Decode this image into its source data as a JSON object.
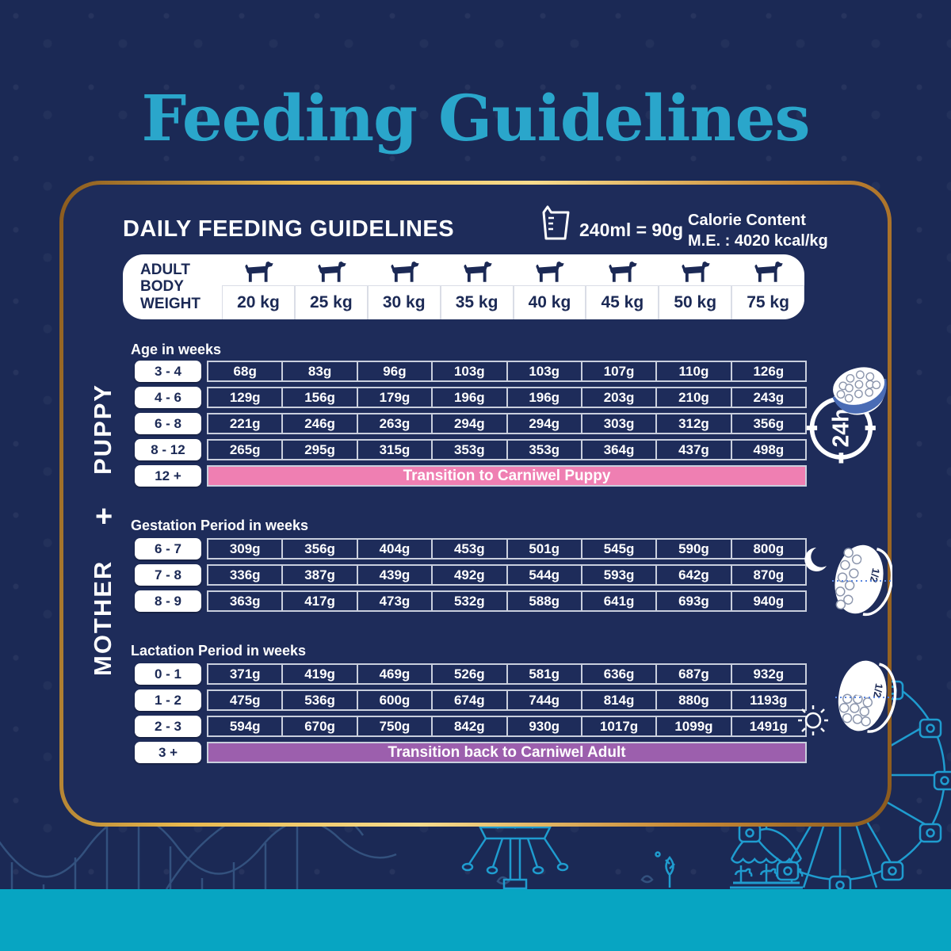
{
  "title": "Feeding Guidelines",
  "colors": {
    "navy": "#1b2955",
    "teal": "#2aa6cb",
    "gold": "#e8b34b",
    "pink": "#ef7fb2",
    "purple": "#9c5fad",
    "strip": "#07a5c2",
    "bowl_blue": "#4a6cb5",
    "lineart": "#1f9ccf"
  },
  "panel": {
    "heading": "DAILY FEEDING GUIDELINES",
    "cup_note": "240ml = 90g",
    "calorie_line1": "Calorie Content",
    "calorie_line2": "M.E. : 4020 kcal/kg",
    "weight_header": {
      "label": "ADULT BODY WEIGHT",
      "weights": [
        "20 kg",
        "25 kg",
        "30 kg",
        "35 kg",
        "40 kg",
        "45 kg",
        "50 kg",
        "75 kg"
      ]
    },
    "sections": {
      "puppy": {
        "side_label": "PUPPY",
        "age_label": "Age in weeks",
        "icon_label": "24h",
        "rows": [
          {
            "label": "3 - 4",
            "values": [
              "68g",
              "83g",
              "96g",
              "103g",
              "103g",
              "107g",
              "110g",
              "126g"
            ]
          },
          {
            "label": "4 - 6",
            "values": [
              "129g",
              "156g",
              "179g",
              "196g",
              "196g",
              "203g",
              "210g",
              "243g"
            ]
          },
          {
            "label": "6 - 8",
            "values": [
              "221g",
              "246g",
              "263g",
              "294g",
              "294g",
              "303g",
              "312g",
              "356g"
            ]
          },
          {
            "label": "8 - 12",
            "values": [
              "265g",
              "295g",
              "315g",
              "353g",
              "353g",
              "364g",
              "437g",
              "498g"
            ]
          }
        ],
        "banner": {
          "label": "12 +",
          "text": "Transition to Carniwel Puppy"
        }
      },
      "mother": {
        "plus": "+",
        "side_label": "MOTHER",
        "gestation": {
          "title": "Gestation Period in weeks",
          "half_label": "1/2",
          "rows": [
            {
              "label": "6 - 7",
              "values": [
                "309g",
                "356g",
                "404g",
                "453g",
                "501g",
                "545g",
                "590g",
                "800g"
              ]
            },
            {
              "label": "7 - 8",
              "values": [
                "336g",
                "387g",
                "439g",
                "492g",
                "544g",
                "593g",
                "642g",
                "870g"
              ]
            },
            {
              "label": "8 - 9",
              "values": [
                "363g",
                "417g",
                "473g",
                "532g",
                "588g",
                "641g",
                "693g",
                "940g"
              ]
            }
          ]
        },
        "lactation": {
          "title": "Lactation Period in weeks",
          "half_label": "1/2",
          "rows": [
            {
              "label": "0 - 1",
              "values": [
                "371g",
                "419g",
                "469g",
                "526g",
                "581g",
                "636g",
                "687g",
                "932g"
              ]
            },
            {
              "label": "1 - 2",
              "values": [
                "475g",
                "536g",
                "600g",
                "674g",
                "744g",
                "814g",
                "880g",
                "1193g"
              ]
            },
            {
              "label": "2 - 3",
              "values": [
                "594g",
                "670g",
                "750g",
                "842g",
                "930g",
                "1017g",
                "1099g",
                "1491g"
              ]
            }
          ],
          "banner": {
            "label": "3 +",
            "text": "Transition back to Carniwel Adult"
          }
        }
      }
    }
  }
}
